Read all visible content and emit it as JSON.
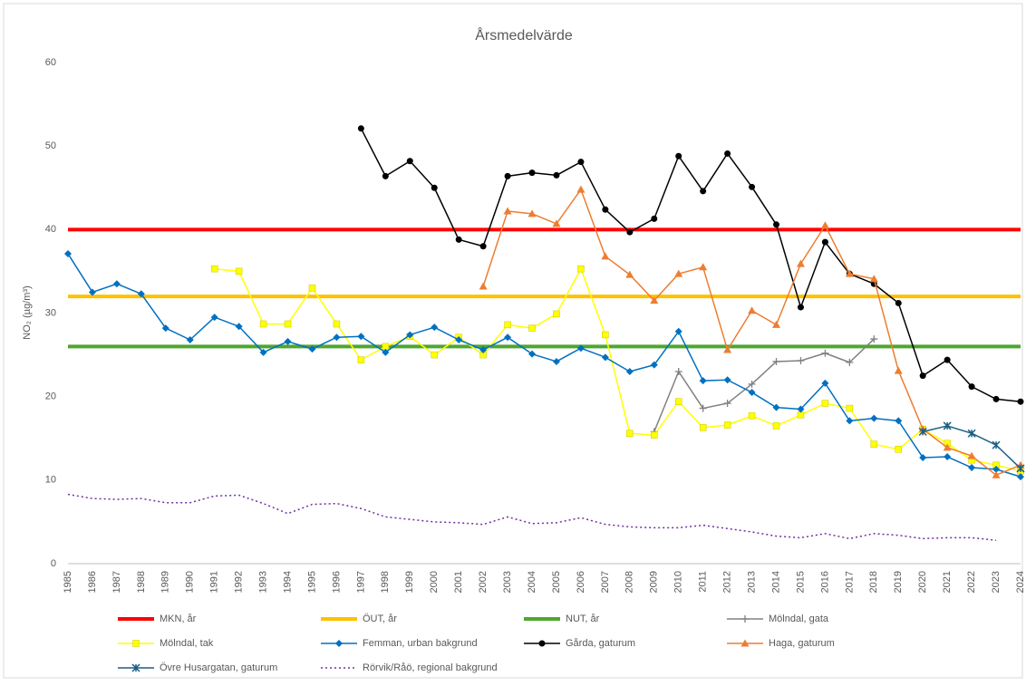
{
  "chart_data": {
    "type": "line",
    "title": "Årsmedelvärde",
    "y_label": "NO₂ (µg/m³)",
    "categories": [
      "1985",
      "1986",
      "1987",
      "1988",
      "1989",
      "1990",
      "1991",
      "1992",
      "1993",
      "1994",
      "1995",
      "1996",
      "1997",
      "1998",
      "1999",
      "2000",
      "2001",
      "2002",
      "2003",
      "2004",
      "2005",
      "2006",
      "2007",
      "2008",
      "2009",
      "2010",
      "2011",
      "2012",
      "2013",
      "2014",
      "2015",
      "2016",
      "2017",
      "2018",
      "2019",
      "2020",
      "2021",
      "2022",
      "2023",
      "2024"
    ],
    "ylim": [
      0,
      60
    ],
    "yticks": [
      0,
      10,
      20,
      30,
      40,
      50,
      60
    ],
    "grid": false,
    "series": [
      {
        "name": "MKN, år",
        "color": "#ff0000",
        "marker": "none",
        "width": 4,
        "values": [
          40,
          40,
          40,
          40,
          40,
          40,
          40,
          40,
          40,
          40,
          40,
          40,
          40,
          40,
          40,
          40,
          40,
          40,
          40,
          40,
          40,
          40,
          40,
          40,
          40,
          40,
          40,
          40,
          40,
          40,
          40,
          40,
          40,
          40,
          40,
          40,
          40,
          40,
          40,
          40
        ]
      },
      {
        "name": "ÖUT, år",
        "color": "#ffc000",
        "marker": "none",
        "width": 4,
        "values": [
          32,
          32,
          32,
          32,
          32,
          32,
          32,
          32,
          32,
          32,
          32,
          32,
          32,
          32,
          32,
          32,
          32,
          32,
          32,
          32,
          32,
          32,
          32,
          32,
          32,
          32,
          32,
          32,
          32,
          32,
          32,
          32,
          32,
          32,
          32,
          32,
          32,
          32,
          32,
          32
        ]
      },
      {
        "name": "NUT, år",
        "color": "#4ea72e",
        "marker": "none",
        "width": 4,
        "values": [
          26,
          26,
          26,
          26,
          26,
          26,
          26,
          26,
          26,
          26,
          26,
          26,
          26,
          26,
          26,
          26,
          26,
          26,
          26,
          26,
          26,
          26,
          26,
          26,
          26,
          26,
          26,
          26,
          26,
          26,
          26,
          26,
          26,
          26,
          26,
          26,
          26,
          26,
          26,
          26
        ]
      },
      {
        "name": "Mölndal, gata",
        "color": "#808080",
        "marker": "plus",
        "width": 1.5,
        "values": [
          null,
          null,
          null,
          null,
          null,
          null,
          null,
          null,
          null,
          null,
          null,
          null,
          null,
          null,
          null,
          null,
          null,
          null,
          null,
          null,
          null,
          null,
          null,
          null,
          15.8,
          23.0,
          18.6,
          19.2,
          21.5,
          24.2,
          24.3,
          25.2,
          24.1,
          26.9,
          null,
          null,
          null,
          null,
          null,
          null
        ]
      },
      {
        "name": "Mölndal, tak",
        "color": "#ffff00",
        "marker": "square",
        "width": 1.5,
        "values": [
          null,
          null,
          null,
          null,
          null,
          null,
          35.3,
          35.0,
          28.7,
          28.7,
          33.0,
          28.7,
          24.4,
          26.0,
          27.2,
          25.0,
          27.1,
          25.0,
          28.6,
          28.2,
          29.9,
          35.3,
          27.4,
          15.6,
          15.4,
          19.4,
          16.3,
          16.6,
          17.7,
          16.5,
          17.8,
          19.2,
          18.6,
          14.3,
          13.7,
          16.1,
          14.4,
          12.4,
          11.8,
          11.1
        ]
      },
      {
        "name": "Femman, urban bakgrund",
        "color": "#0070c0",
        "marker": "diamond",
        "width": 1.5,
        "values": [
          37.1,
          32.5,
          33.5,
          32.3,
          28.2,
          26.8,
          29.5,
          28.4,
          25.3,
          26.6,
          25.7,
          27.1,
          27.2,
          25.3,
          27.4,
          28.3,
          26.8,
          25.6,
          27.1,
          25.1,
          24.2,
          25.8,
          24.7,
          23.0,
          23.8,
          27.8,
          21.9,
          22.0,
          20.5,
          18.7,
          18.5,
          21.6,
          17.1,
          17.4,
          17.1,
          12.7,
          12.8,
          11.5,
          11.3,
          10.4
        ]
      },
      {
        "name": "Gårda, gaturum",
        "color": "#000000",
        "marker": "circle",
        "width": 1.5,
        "values": [
          null,
          null,
          null,
          null,
          null,
          null,
          null,
          null,
          null,
          null,
          null,
          null,
          52.1,
          46.4,
          48.2,
          45.0,
          38.8,
          38.0,
          46.4,
          46.8,
          46.5,
          48.1,
          42.4,
          39.7,
          41.3,
          48.8,
          44.6,
          49.1,
          45.1,
          40.6,
          30.7,
          38.5,
          34.7,
          33.5,
          31.2,
          22.5,
          24.4,
          21.2,
          19.7,
          19.4
        ]
      },
      {
        "name": "Haga, gaturum",
        "color": "#ed7d31",
        "marker": "triangle",
        "width": 1.5,
        "values": [
          null,
          null,
          null,
          null,
          null,
          null,
          null,
          null,
          null,
          null,
          null,
          null,
          null,
          null,
          null,
          null,
          null,
          33.2,
          42.2,
          41.9,
          40.7,
          44.8,
          36.8,
          34.6,
          31.5,
          34.7,
          35.5,
          25.6,
          30.3,
          28.6,
          35.9,
          40.5,
          34.7,
          34.1,
          23.1,
          16.1,
          13.9,
          12.9,
          10.6,
          11.8
        ]
      },
      {
        "name": "Övre Husargatan, gaturum",
        "color": "#1b5e82",
        "marker": "star",
        "width": 1.5,
        "values": [
          null,
          null,
          null,
          null,
          null,
          null,
          null,
          null,
          null,
          null,
          null,
          null,
          null,
          null,
          null,
          null,
          null,
          null,
          null,
          null,
          null,
          null,
          null,
          null,
          null,
          null,
          null,
          null,
          null,
          null,
          null,
          null,
          null,
          null,
          null,
          15.8,
          16.5,
          15.6,
          14.2,
          11.4
        ]
      },
      {
        "name": "Rörvik/Råö, regional bakgrund",
        "color": "#7030a0",
        "marker": "none",
        "width": 1.5,
        "dashed": true,
        "values": [
          8.3,
          7.8,
          7.7,
          7.8,
          7.3,
          7.3,
          8.1,
          8.2,
          7.2,
          6.0,
          7.1,
          7.2,
          6.6,
          5.6,
          5.3,
          5.0,
          4.9,
          4.7,
          5.6,
          4.8,
          4.9,
          5.5,
          4.7,
          4.4,
          4.3,
          4.3,
          4.6,
          4.2,
          3.8,
          3.3,
          3.1,
          3.6,
          3.0,
          3.6,
          3.4,
          3.0,
          3.1,
          3.1,
          2.8,
          null
        ]
      }
    ]
  }
}
